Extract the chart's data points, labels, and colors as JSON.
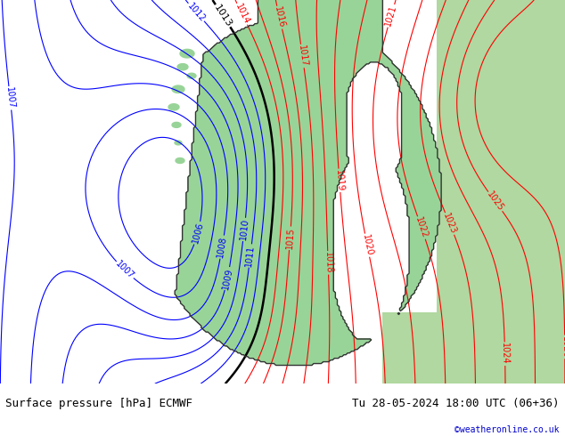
{
  "title_left": "Surface pressure [hPa] ECMWF",
  "title_right": "Tu 28-05-2024 18:00 UTC (06+36)",
  "credit": "©weatheronline.co.uk",
  "footer_bg": "#c8e6c9",
  "map_bg_ocean": "#d8d8d8",
  "map_bg_land_scandinavia": "#98d498",
  "map_bg_land_east": "#b0d8a0",
  "contour_color_low": "#0000ff",
  "contour_color_high": "#ff0000",
  "contour_color_boundary": "#000000",
  "font_size_labels": 7,
  "font_size_footer": 9,
  "fig_width": 6.34,
  "fig_height": 4.9,
  "dpi": 100
}
